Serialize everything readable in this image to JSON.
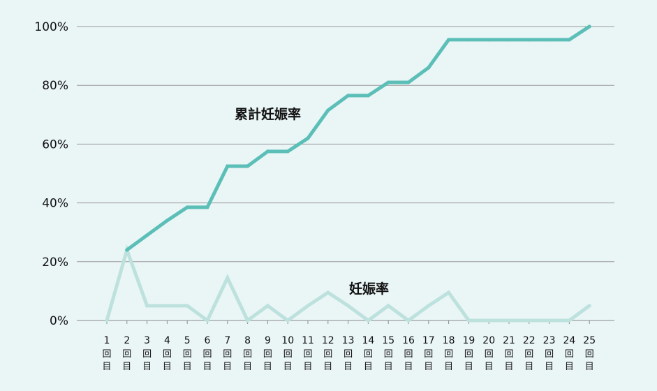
{
  "chart_data": {
    "type": "line",
    "title": "",
    "xlabel": "",
    "ylabel": "",
    "x": [
      "1",
      "2",
      "3",
      "4",
      "5",
      "6",
      "7",
      "8",
      "9",
      "10",
      "11",
      "12",
      "13",
      "14",
      "15",
      "16",
      "17",
      "18",
      "19",
      "20",
      "21",
      "22",
      "23",
      "24",
      "25"
    ],
    "x_unit_chars": [
      "回",
      "目"
    ],
    "ylim": [
      0,
      100
    ],
    "y_ticks": [
      "0%",
      "20%",
      "40%",
      "60%",
      "80%",
      "100%"
    ],
    "y_tick_values": [
      0,
      20,
      40,
      60,
      80,
      100
    ],
    "grid": true,
    "series": [
      {
        "name": "累計妊娠率",
        "color": "#5bbfb8",
        "values": [
          null,
          24,
          29,
          34,
          38.5,
          38.5,
          52.5,
          52.5,
          57.5,
          57.5,
          62,
          71.5,
          76.5,
          76.5,
          81,
          81,
          86,
          95.5,
          95.5,
          95.5,
          95.5,
          95.5,
          95.5,
          95.5,
          100
        ]
      },
      {
        "name": "妊娠率",
        "color": "#bde2de",
        "values": [
          0,
          24,
          5,
          5,
          5,
          0,
          14.5,
          0,
          5,
          0,
          5,
          9.5,
          5,
          0,
          5,
          0,
          5,
          9.5,
          0,
          0,
          0,
          0,
          0,
          0,
          5
        ]
      }
    ]
  }
}
